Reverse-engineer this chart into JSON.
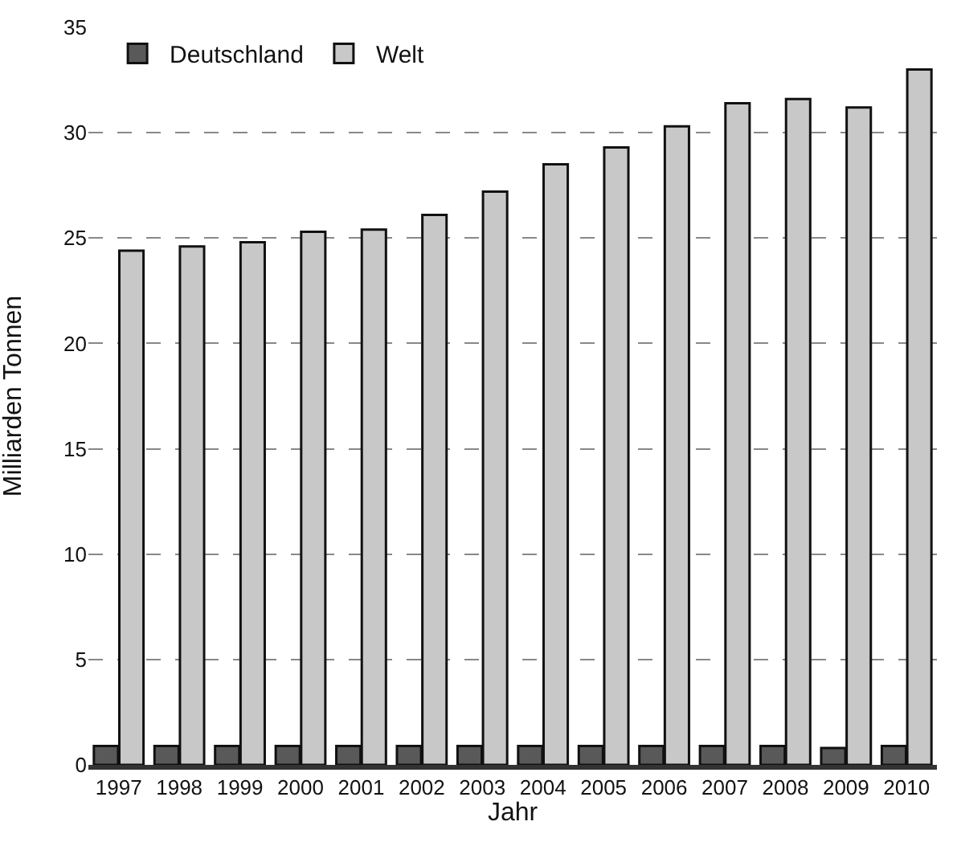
{
  "chart_data": {
    "type": "bar",
    "xlabel": "Jahr",
    "ylabel": "Milliarden Tonnen",
    "categories": [
      "1997",
      "1998",
      "1999",
      "2000",
      "2001",
      "2002",
      "2003",
      "2004",
      "2005",
      "2006",
      "2007",
      "2008",
      "2009",
      "2010"
    ],
    "series": [
      {
        "name": "Deutschland",
        "color": "#595959",
        "values": [
          0.9,
          0.9,
          0.9,
          0.9,
          0.9,
          0.9,
          0.9,
          0.9,
          0.9,
          0.9,
          0.9,
          0.9,
          0.8,
          0.9
        ]
      },
      {
        "name": "Welt",
        "color": "#c8c8c8",
        "values": [
          24.4,
          24.6,
          24.8,
          25.3,
          25.4,
          26.1,
          27.2,
          28.5,
          29.3,
          30.3,
          31.4,
          31.6,
          31.2,
          33.0
        ]
      }
    ],
    "ylim": [
      0,
      35
    ],
    "yticks": [
      0,
      5,
      10,
      15,
      20,
      25,
      30,
      35
    ],
    "grid": "y",
    "legend": "top left"
  }
}
